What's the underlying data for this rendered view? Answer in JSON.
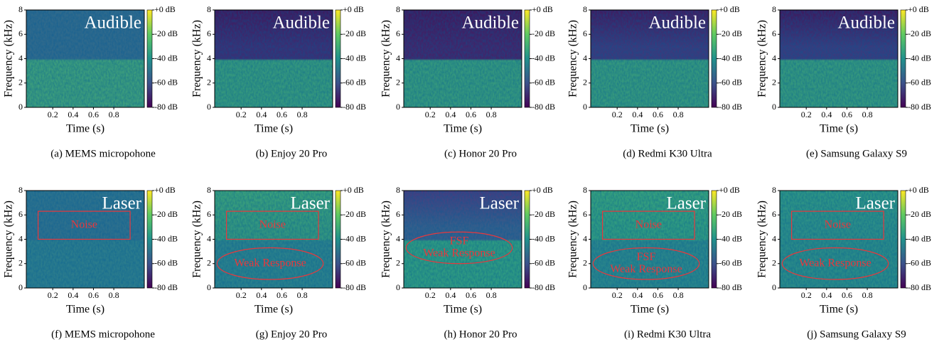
{
  "chart_data": [
    {
      "type": "spectrogram",
      "title": "Audible",
      "caption": "(a)  MEMS micropohone",
      "xlabel": "Time (s)",
      "ylabel": "Frequency (kHz)",
      "xlim": [
        -0.06,
        1.1
      ],
      "xticks": [
        0.2,
        0.4,
        0.6,
        0.8
      ],
      "ylim": [
        0,
        8
      ],
      "yticks": [
        0,
        2,
        4,
        6,
        8
      ],
      "clim": [
        -80,
        0
      ],
      "cticks": [
        {
          "value": 0,
          "label": "+0 dB"
        },
        {
          "value": -20,
          "label": "-20 dB"
        },
        {
          "value": -40,
          "label": "-40 dB"
        },
        {
          "value": -60,
          "label": "-60 dB"
        },
        {
          "value": -80,
          "label": "-80 dB"
        }
      ]
    },
    {
      "type": "spectrogram",
      "title": "Audible",
      "caption": "(b)  Enjoy 20 Pro",
      "xlabel": "Time (s)",
      "ylabel": "Frequency (kHz)",
      "xlim": [
        -0.06,
        1.1
      ],
      "xticks": [
        0.2,
        0.4,
        0.6,
        0.8
      ],
      "ylim": [
        0,
        8
      ],
      "yticks": [
        0,
        2,
        4,
        6,
        8
      ],
      "clim": [
        -80,
        0
      ],
      "cticks": [
        {
          "value": 0,
          "label": "+0 dB"
        },
        {
          "value": -20,
          "label": "-20 dB"
        },
        {
          "value": -40,
          "label": "-40 dB"
        },
        {
          "value": -60,
          "label": "-60 dB"
        },
        {
          "value": -80,
          "label": "-80 dB"
        }
      ]
    },
    {
      "type": "spectrogram",
      "title": "Audible",
      "caption": "(c)  Honor 20 Pro",
      "xlabel": "Time (s)",
      "ylabel": "Frequency (kHz)",
      "xlim": [
        -0.06,
        1.1
      ],
      "xticks": [
        0.2,
        0.4,
        0.6,
        0.8
      ],
      "ylim": [
        0,
        8
      ],
      "yticks": [
        0,
        2,
        4,
        6,
        8
      ],
      "clim": [
        -80,
        0
      ],
      "cticks": [
        {
          "value": 0,
          "label": "+0 dB"
        },
        {
          "value": -20,
          "label": "-20 dB"
        },
        {
          "value": -40,
          "label": "-40 dB"
        },
        {
          "value": -60,
          "label": "-60 dB"
        },
        {
          "value": -80,
          "label": "-80 dB"
        }
      ]
    },
    {
      "type": "spectrogram",
      "title": "Audible",
      "caption": "(d)  Redmi K30 Ultra",
      "xlabel": "Time (s)",
      "ylabel": "Frequency (kHz)",
      "xlim": [
        -0.06,
        1.1
      ],
      "xticks": [
        0.2,
        0.4,
        0.6,
        0.8
      ],
      "ylim": [
        0,
        8
      ],
      "yticks": [
        0,
        2,
        4,
        6,
        8
      ],
      "clim": [
        -80,
        0
      ],
      "cticks": [
        {
          "value": 0,
          "label": "+0 dB"
        },
        {
          "value": -20,
          "label": "-20 dB"
        },
        {
          "value": -40,
          "label": "-40 dB"
        },
        {
          "value": -60,
          "label": "-60 dB"
        },
        {
          "value": -80,
          "label": "-80 dB"
        }
      ]
    },
    {
      "type": "spectrogram",
      "title": "Audible",
      "caption": "(e)  Samsung Galaxy S9",
      "xlabel": "Time (s)",
      "ylabel": "Frequency (kHz)",
      "xlim": [
        -0.06,
        1.1
      ],
      "xticks": [
        0.2,
        0.4,
        0.6,
        0.8
      ],
      "ylim": [
        0,
        8
      ],
      "yticks": [
        0,
        2,
        4,
        6,
        8
      ],
      "clim": [
        -80,
        0
      ],
      "cticks": [
        {
          "value": 0,
          "label": "+0 dB"
        },
        {
          "value": -20,
          "label": "-20 dB"
        },
        {
          "value": -40,
          "label": "-40 dB"
        },
        {
          "value": -60,
          "label": "-60 dB"
        },
        {
          "value": -80,
          "label": "-80 dB"
        }
      ]
    },
    {
      "type": "spectrogram",
      "title": "Laser",
      "caption": "(f)  MEMS micropohone",
      "box_label": "Noise",
      "xlabel": "Time (s)",
      "ylabel": "Frequency (kHz)",
      "xlim": [
        -0.06,
        1.1
      ],
      "xticks": [
        0.2,
        0.4,
        0.6,
        0.8
      ],
      "ylim": [
        0,
        8
      ],
      "yticks": [
        0,
        2,
        4,
        6,
        8
      ],
      "clim": [
        -80,
        0
      ],
      "cticks": [
        {
          "value": 0,
          "label": "+0 dB"
        },
        {
          "value": -20,
          "label": "-20 dB"
        },
        {
          "value": -40,
          "label": "-40 dB"
        },
        {
          "value": -60,
          "label": "-60 dB"
        },
        {
          "value": -80,
          "label": "-80 dB"
        }
      ]
    },
    {
      "type": "spectrogram",
      "title": "Laser",
      "caption": "(g)  Enjoy 20 Pro",
      "box_label": "Noise",
      "ellipse_label": [
        "Weak Response"
      ],
      "xlabel": "Time (s)",
      "ylabel": "Frequency (kHz)",
      "xlim": [
        -0.06,
        1.1
      ],
      "xticks": [
        0.2,
        0.4,
        0.6,
        0.8
      ],
      "ylim": [
        0,
        8
      ],
      "yticks": [
        0,
        2,
        4,
        6,
        8
      ],
      "clim": [
        -80,
        0
      ],
      "cticks": [
        {
          "value": 0,
          "label": "+0 dB"
        },
        {
          "value": -20,
          "label": "-20 dB"
        },
        {
          "value": -40,
          "label": "-40 dB"
        },
        {
          "value": -60,
          "label": "-60 dB"
        },
        {
          "value": -80,
          "label": "-80 dB"
        }
      ]
    },
    {
      "type": "spectrogram",
      "title": "Laser",
      "caption": "(h)  Honor 20 Pro",
      "ellipse_label": [
        "FSF",
        "Weak Response"
      ],
      "xlabel": "Time (s)",
      "ylabel": "Frequency (kHz)",
      "xlim": [
        -0.06,
        1.1
      ],
      "xticks": [
        0.2,
        0.4,
        0.6,
        0.8
      ],
      "ylim": [
        0,
        8
      ],
      "yticks": [
        0,
        2,
        4,
        6,
        8
      ],
      "clim": [
        -80,
        0
      ],
      "cticks": [
        {
          "value": 0,
          "label": "+0 dB"
        },
        {
          "value": -20,
          "label": "-20 dB"
        },
        {
          "value": -40,
          "label": "-40 dB"
        },
        {
          "value": -60,
          "label": "-60 dB"
        },
        {
          "value": -80,
          "label": "-80 dB"
        }
      ]
    },
    {
      "type": "spectrogram",
      "title": "Laser",
      "caption": "(i)  Redmi K30 Ultra",
      "box_label": "Noise",
      "ellipse_label": [
        "FSF",
        "Weak Response"
      ],
      "xlabel": "Time (s)",
      "ylabel": "Frequency (kHz)",
      "xlim": [
        -0.06,
        1.1
      ],
      "xticks": [
        0.2,
        0.4,
        0.6,
        0.8
      ],
      "ylim": [
        0,
        8
      ],
      "yticks": [
        0,
        2,
        4,
        6,
        8
      ],
      "clim": [
        -80,
        0
      ],
      "cticks": [
        {
          "value": 0,
          "label": "+0 dB"
        },
        {
          "value": -20,
          "label": "-20 dB"
        },
        {
          "value": -40,
          "label": "-40 dB"
        },
        {
          "value": -60,
          "label": "-60 dB"
        },
        {
          "value": -80,
          "label": "-80 dB"
        }
      ]
    },
    {
      "type": "spectrogram",
      "title": "Laser",
      "caption": "(j)  Samsung Galaxy S9",
      "box_label": "Noise",
      "ellipse_label": [
        "Weak Response"
      ],
      "xlabel": "Time (s)",
      "ylabel": "Frequency (kHz)",
      "xlim": [
        -0.06,
        1.1
      ],
      "xticks": [
        0.2,
        0.4,
        0.6,
        0.8
      ],
      "ylim": [
        0,
        8
      ],
      "yticks": [
        0,
        2,
        4,
        6,
        8
      ],
      "clim": [
        -80,
        0
      ],
      "cticks": [
        {
          "value": 0,
          "label": "+0 dB"
        },
        {
          "value": -20,
          "label": "-20 dB"
        },
        {
          "value": -40,
          "label": "-40 dB"
        },
        {
          "value": -60,
          "label": "-60 dB"
        },
        {
          "value": -80,
          "label": "-80 dB"
        }
      ]
    }
  ]
}
